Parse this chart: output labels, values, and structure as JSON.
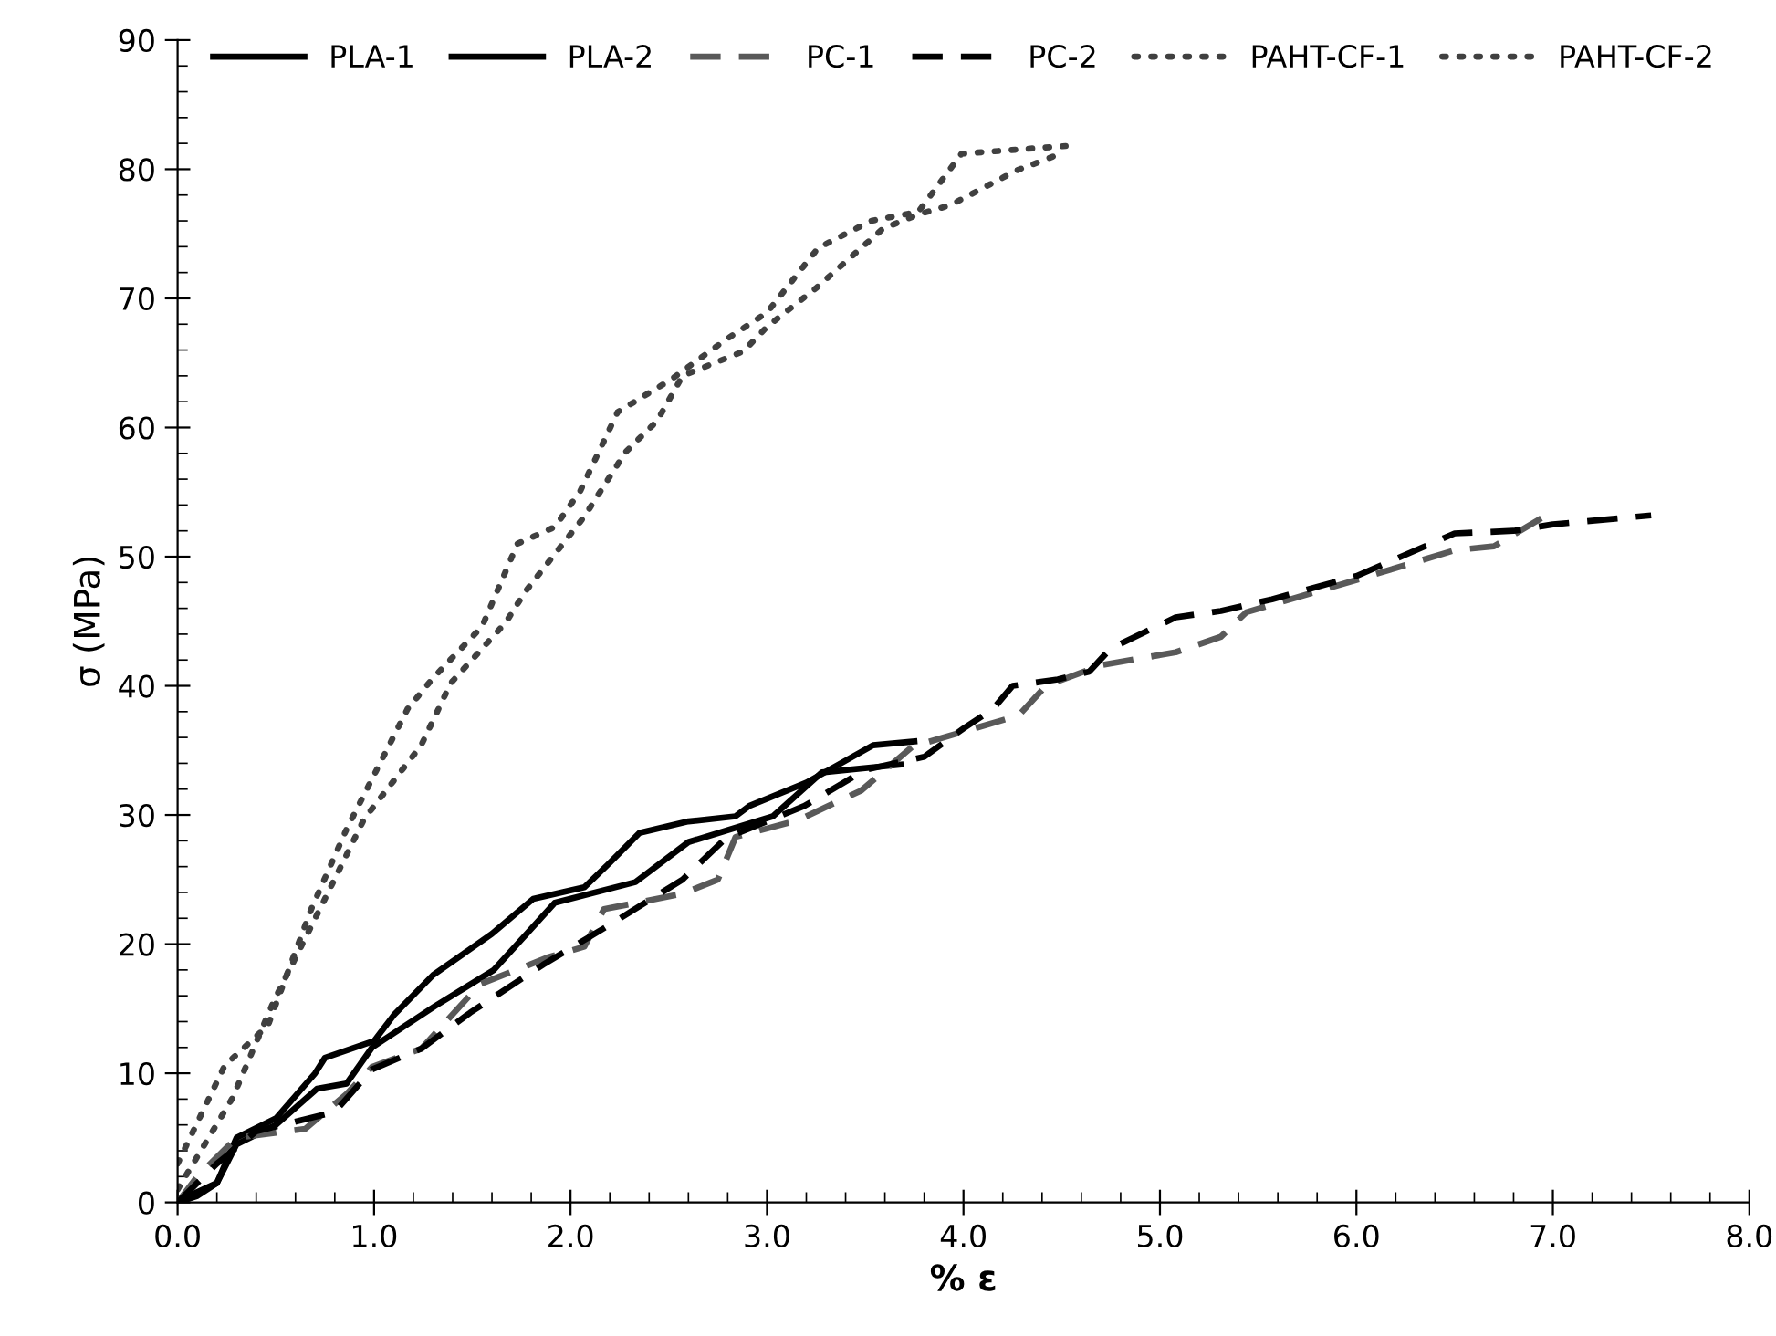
{
  "chart_data": {
    "type": "line",
    "xlabel": "% ε",
    "ylabel": "σ (MPa)",
    "xlim": [
      0,
      8
    ],
    "ylim": [
      0,
      90
    ],
    "xticks": [
      {
        "value": 0,
        "label": "0.0"
      },
      {
        "value": 1,
        "label": "1.0"
      },
      {
        "value": 2,
        "label": "2.0"
      },
      {
        "value": 3,
        "label": "3.0"
      },
      {
        "value": 4,
        "label": "4.0"
      },
      {
        "value": 5,
        "label": "5.0"
      },
      {
        "value": 6,
        "label": "6.0"
      },
      {
        "value": 7,
        "label": "7.0"
      },
      {
        "value": 8,
        "label": "8.0"
      }
    ],
    "yticks": [
      0,
      10,
      20,
      30,
      40,
      50,
      60,
      70,
      80,
      90
    ],
    "grid": false,
    "legend": "top",
    "marker": "none",
    "series": [
      {
        "name": "PLA-1",
        "color": "#000000",
        "line_style": "solid",
        "x": [
          0,
          0.1,
          0.2,
          0.3,
          0.5,
          0.7,
          0.75,
          1.0,
          1.1,
          1.3,
          1.6,
          1.81,
          2.07,
          2.2,
          2.35,
          2.6,
          2.84,
          2.91,
          3.2,
          3.54,
          3.75
        ],
        "values": [
          0,
          0.8,
          1.5,
          5,
          6.5,
          10,
          11.2,
          12.5,
          14.5,
          17.6,
          20.8,
          23.5,
          24.4,
          26.3,
          28.6,
          29.5,
          29.9,
          30.7,
          32.5,
          35.4,
          35.7
        ]
      },
      {
        "name": "PLA-2",
        "color": "#000000",
        "line_style": "solid",
        "x": [
          0,
          0.1,
          0.2,
          0.3,
          0.5,
          0.71,
          0.86,
          0.99,
          1.31,
          1.61,
          1.92,
          2.33,
          2.6,
          3.03,
          3.28,
          3.68
        ],
        "values": [
          0,
          0.5,
          1.5,
          4.5,
          6,
          8.8,
          9.2,
          12,
          15.2,
          18,
          23.2,
          24.8,
          27.9,
          29.9,
          33.3,
          33.9
        ]
      },
      {
        "name": "PC-1",
        "color": "#595959",
        "line_style": "dashed",
        "x": [
          0,
          0.1,
          0.3,
          0.65,
          0.86,
          0.99,
          1.24,
          1.54,
          1.89,
          2.07,
          2.17,
          2.57,
          2.75,
          2.84,
          3.16,
          3.48,
          3.74,
          4.28,
          4.42,
          4.7,
          5.08,
          5.31,
          5.44,
          6.0,
          6.5,
          6.7,
          7.0
        ],
        "values": [
          0,
          2,
          5,
          5.7,
          8.4,
          10.5,
          11.9,
          16.9,
          19,
          19.8,
          22.7,
          23.9,
          25,
          28.3,
          29.6,
          31.9,
          35.3,
          37.7,
          40,
          41.6,
          42.6,
          43.8,
          45.7,
          48.2,
          50.5,
          50.8,
          53.5
        ]
      },
      {
        "name": "PC-2",
        "color": "#000000",
        "line_style": "dashed",
        "x": [
          0,
          0.2,
          0.4,
          0.8,
          0.99,
          1.24,
          1.49,
          1.86,
          2.2,
          2.57,
          2.79,
          3.19,
          3.5,
          3.8,
          4.0,
          4.15,
          4.25,
          4.48,
          4.64,
          4.75,
          5.08,
          5.31,
          5.57,
          6.0,
          6.5,
          6.8,
          7.0,
          7.5
        ],
        "values": [
          0,
          3,
          5.5,
          7,
          10.3,
          11.9,
          14.7,
          18.4,
          21.5,
          25,
          28.2,
          30.7,
          33.5,
          34.5,
          36.7,
          38.2,
          40,
          40.5,
          41.1,
          42.9,
          45.3,
          45.8,
          46.7,
          48.5,
          51.8,
          52,
          52.5,
          53.2
        ]
      },
      {
        "name": "PAHT-CF-1",
        "color": "#404040",
        "line_style": "dotted",
        "x": [
          0,
          0.24,
          0.46,
          0.68,
          0.86,
          1.17,
          1.3,
          1.55,
          1.73,
          1.92,
          2.05,
          2.24,
          2.51,
          2.79,
          3.0,
          3.26,
          3.53,
          3.77,
          3.99,
          4.52
        ],
        "values": [
          3,
          10.6,
          13.7,
          22.7,
          28.9,
          38.2,
          40.6,
          44.6,
          51,
          52.3,
          55.1,
          61.2,
          63.7,
          66.8,
          68.9,
          73.9,
          76,
          76.7,
          81.2,
          81.8
        ]
      },
      {
        "name": "PAHT-CF-2",
        "color": "#404040",
        "line_style": "dotted",
        "x": [
          0,
          0.28,
          0.49,
          0.74,
          0.95,
          1.24,
          1.39,
          1.67,
          1.77,
          2.07,
          2.28,
          2.44,
          2.57,
          2.88,
          3.0,
          3.25,
          3.59,
          3.77,
          3.93,
          4.27,
          4.46
        ],
        "values": [
          1,
          8.1,
          15.6,
          23.2,
          29.7,
          35.4,
          40.2,
          44.9,
          47.3,
          53.1,
          58.1,
          60.5,
          64,
          65.9,
          67.8,
          70.8,
          75.4,
          76.5,
          77.2,
          79.9,
          81
        ]
      }
    ]
  }
}
